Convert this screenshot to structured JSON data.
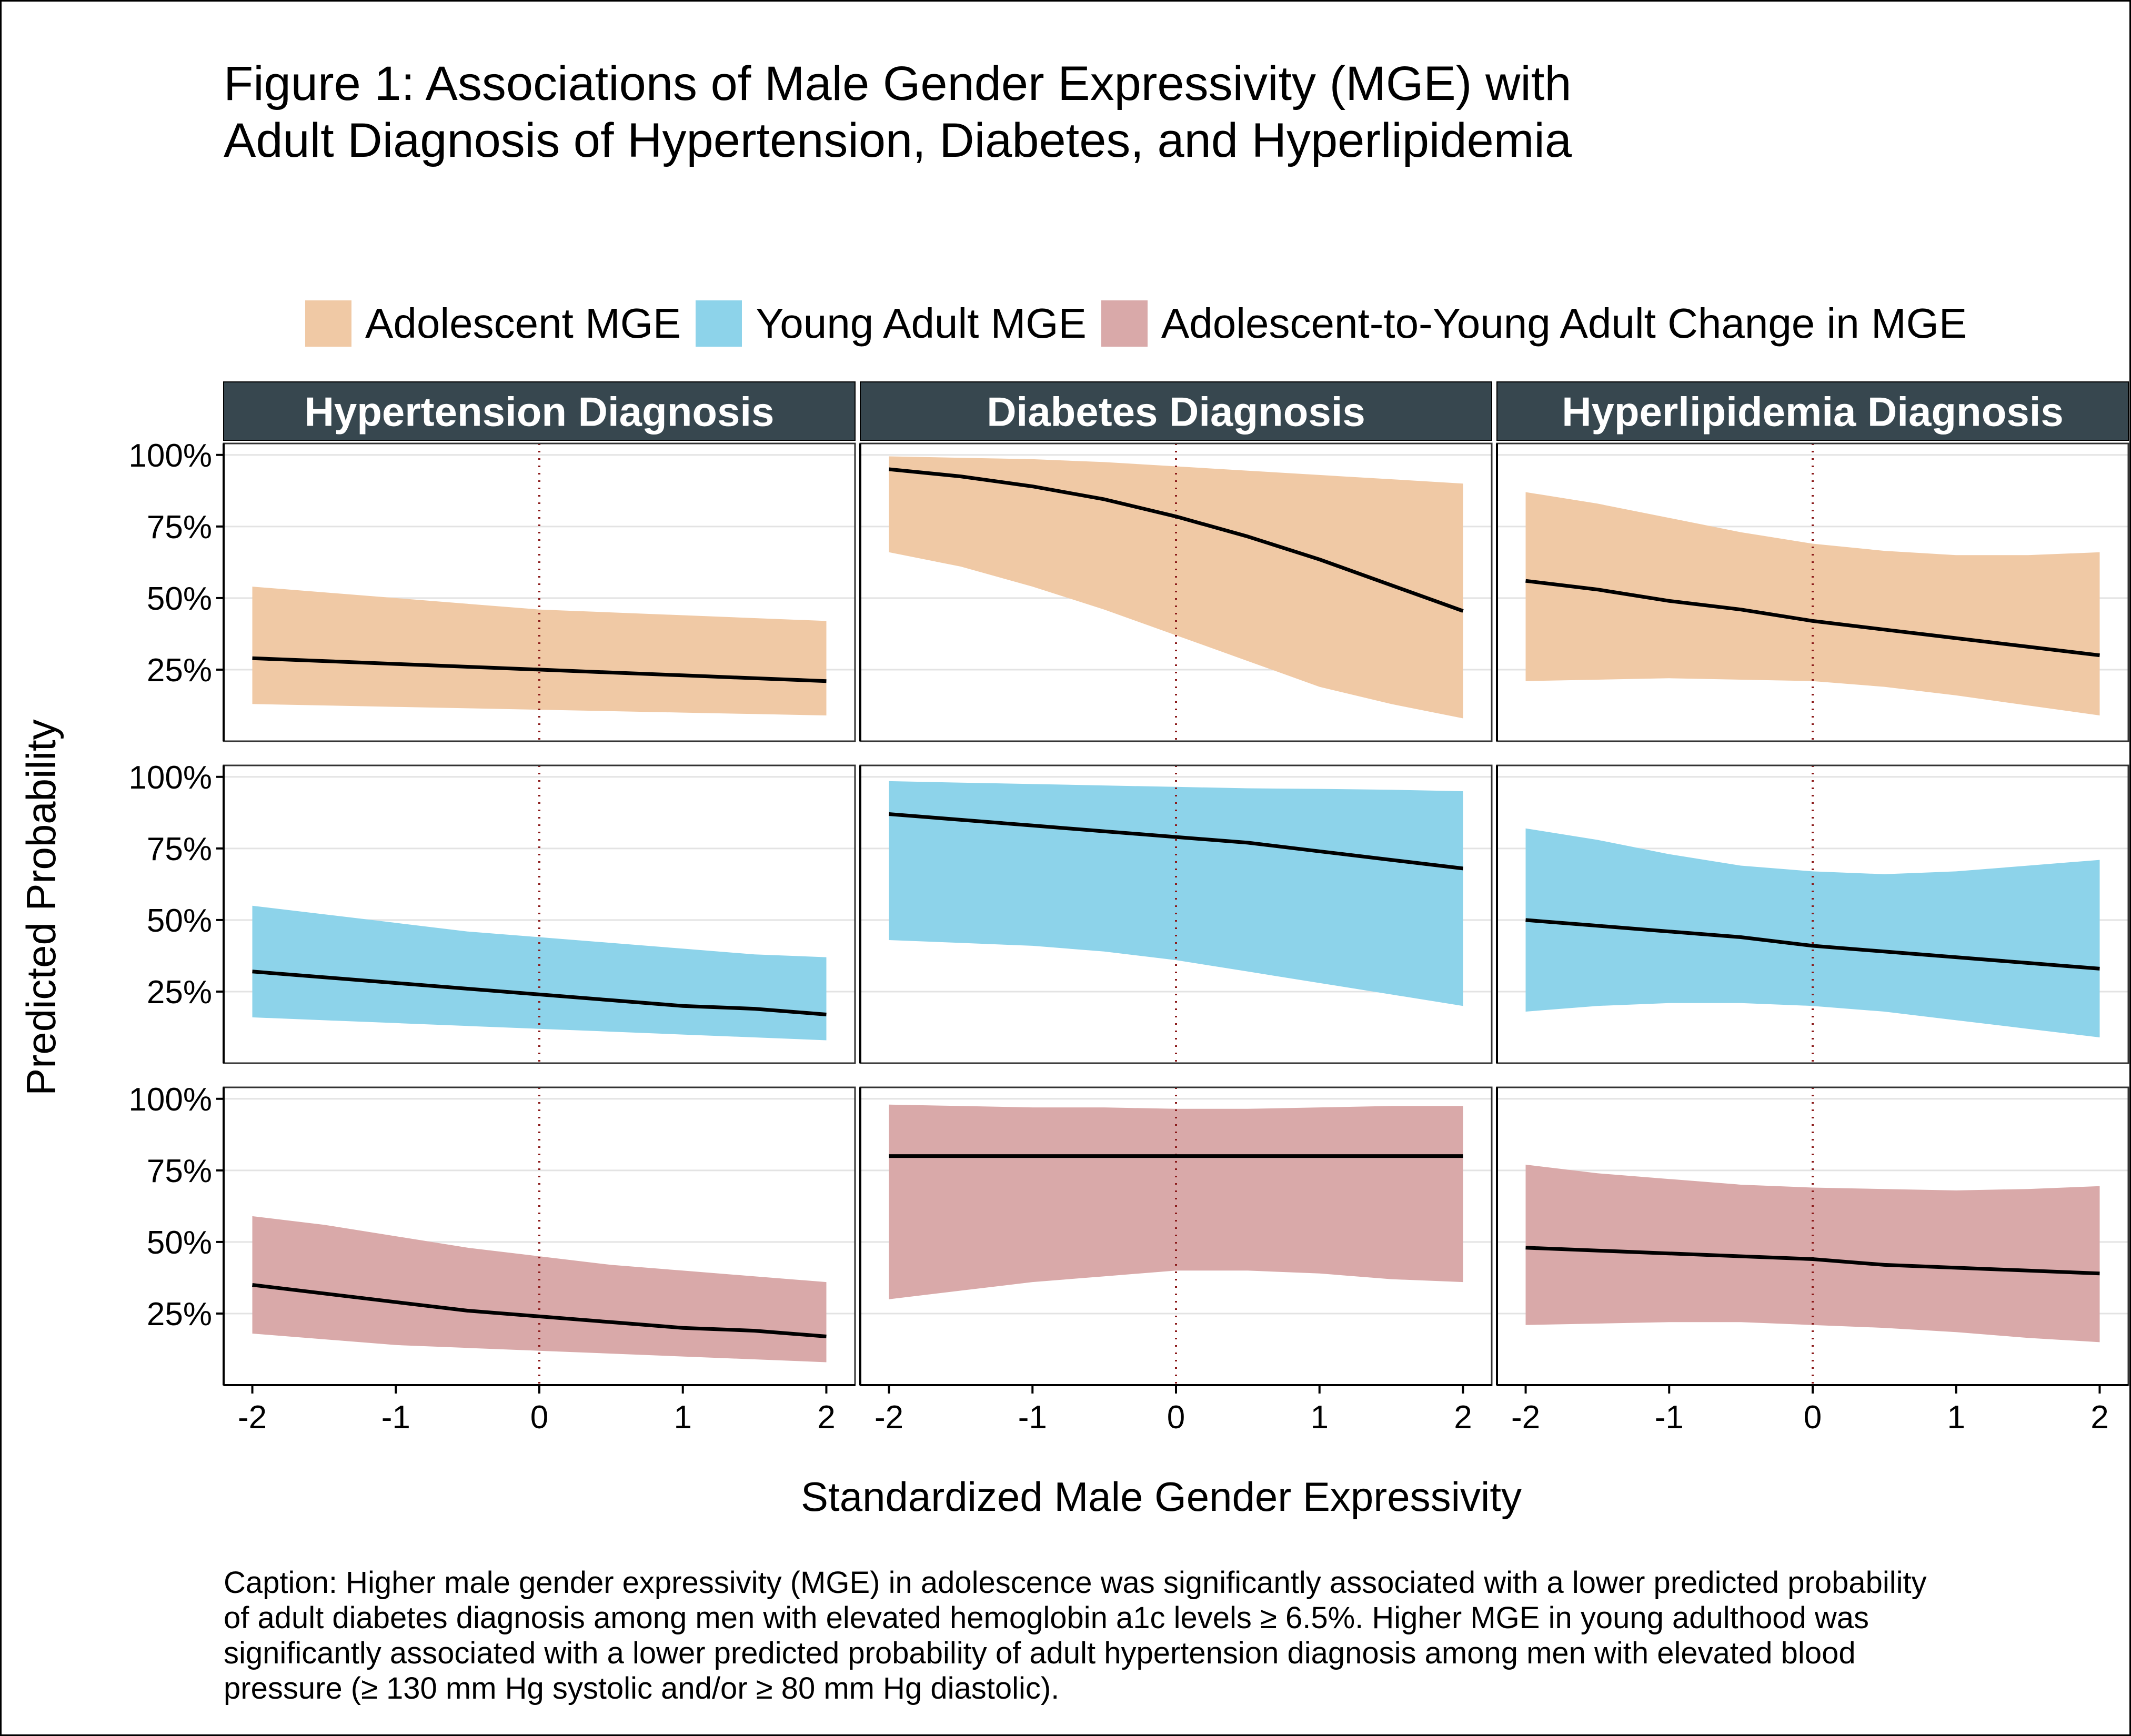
{
  "figure": {
    "title_line1": "Figure 1: Associations of Male Gender Expressivity (MGE) with",
    "title_line2": "Adult Diagnosis of Hypertension, Diabetes, and Hyperlipidemia",
    "caption_lines": [
      "Caption: Higher male gender expressivity (MGE) in adolescence was significantly associated with a lower predicted probability",
      "of adult diabetes diagnosis among men with elevated hemoglobin a1c levels ≥ 6.5%. Higher MGE in young adulthood was",
      "significantly associated with a lower predicted probability of adult hypertension diagnosis among men with elevated blood",
      "pressure (≥ 130 mm Hg systolic and/or ≥ 80 mm Hg diastolic)."
    ]
  },
  "chart_data": {
    "type": "area",
    "xlabel": "Standardized Male Gender Expressivity",
    "ylabel": "Predicted Probability",
    "xlim": [
      -2.2,
      2.2
    ],
    "ylim": [
      0,
      1.04
    ],
    "x_ticks": [
      -2,
      -1,
      0,
      1,
      2
    ],
    "x_tick_labels": [
      "-2",
      "-1",
      "0",
      "1",
      "2"
    ],
    "y_ticks": [
      1.0,
      0.75,
      0.5,
      0.25
    ],
    "y_tick_labels": [
      "100%",
      "75%",
      "50%",
      "25%"
    ],
    "reference_line_x": 0,
    "reference_line_color": "#8b1a1a",
    "grid": true,
    "legend_position": "top",
    "columns": [
      "Hypertension Diagnosis",
      "Diabetes Diagnosis",
      "Hyperlipidemia Diagnosis"
    ],
    "strip_color": "#37474f",
    "series": [
      {
        "name": "Adolescent MGE",
        "color": "#f0c9a5"
      },
      {
        "name": "Young Adult MGE",
        "color": "#8dd3ea"
      },
      {
        "name": "Adolescent-to-Young Adult Change in MGE",
        "color": "#d9a9a9"
      }
    ],
    "x": [
      -2,
      -1.5,
      -1,
      -0.5,
      0,
      0.5,
      1,
      1.5,
      2
    ],
    "panels": [
      [
        {
          "fit": [
            0.29,
            0.28,
            0.27,
            0.26,
            0.25,
            0.24,
            0.23,
            0.22,
            0.21
          ],
          "lower": [
            0.13,
            0.125,
            0.12,
            0.115,
            0.11,
            0.105,
            0.1,
            0.095,
            0.09
          ],
          "upper": [
            0.54,
            0.52,
            0.5,
            0.48,
            0.46,
            0.45,
            0.44,
            0.43,
            0.42
          ]
        },
        {
          "fit": [
            0.32,
            0.3,
            0.28,
            0.26,
            0.24,
            0.22,
            0.2,
            0.19,
            0.17
          ],
          "lower": [
            0.16,
            0.15,
            0.14,
            0.13,
            0.12,
            0.11,
            0.1,
            0.09,
            0.08
          ],
          "upper": [
            0.55,
            0.52,
            0.49,
            0.46,
            0.44,
            0.42,
            0.4,
            0.38,
            0.37
          ]
        },
        {
          "fit": [
            0.35,
            0.32,
            0.29,
            0.26,
            0.24,
            0.22,
            0.2,
            0.19,
            0.17
          ],
          "lower": [
            0.18,
            0.16,
            0.14,
            0.13,
            0.12,
            0.11,
            0.1,
            0.09,
            0.08
          ],
          "upper": [
            0.59,
            0.56,
            0.52,
            0.48,
            0.45,
            0.42,
            0.4,
            0.38,
            0.36
          ]
        }
      ],
      [
        {
          "fit": [
            0.95,
            0.925,
            0.89,
            0.845,
            0.785,
            0.715,
            0.635,
            0.545,
            0.455
          ],
          "lower": [
            0.66,
            0.61,
            0.54,
            0.46,
            0.37,
            0.28,
            0.19,
            0.13,
            0.08
          ],
          "upper": [
            0.995,
            0.99,
            0.985,
            0.975,
            0.96,
            0.945,
            0.93,
            0.915,
            0.9
          ]
        },
        {
          "fit": [
            0.87,
            0.85,
            0.83,
            0.81,
            0.79,
            0.77,
            0.74,
            0.71,
            0.68
          ],
          "lower": [
            0.43,
            0.42,
            0.41,
            0.39,
            0.36,
            0.32,
            0.28,
            0.24,
            0.2
          ],
          "upper": [
            0.985,
            0.98,
            0.975,
            0.97,
            0.965,
            0.96,
            0.958,
            0.955,
            0.95
          ]
        },
        {
          "fit": [
            0.8,
            0.8,
            0.8,
            0.8,
            0.8,
            0.8,
            0.8,
            0.8,
            0.8
          ],
          "lower": [
            0.3,
            0.33,
            0.36,
            0.38,
            0.4,
            0.4,
            0.39,
            0.37,
            0.36
          ],
          "upper": [
            0.98,
            0.975,
            0.97,
            0.97,
            0.965,
            0.965,
            0.97,
            0.975,
            0.975
          ]
        }
      ],
      [
        {
          "fit": [
            0.56,
            0.53,
            0.49,
            0.46,
            0.42,
            0.39,
            0.36,
            0.33,
            0.3
          ],
          "lower": [
            0.21,
            0.215,
            0.22,
            0.215,
            0.21,
            0.19,
            0.16,
            0.125,
            0.09
          ],
          "upper": [
            0.87,
            0.83,
            0.78,
            0.73,
            0.69,
            0.665,
            0.65,
            0.65,
            0.66
          ]
        },
        {
          "fit": [
            0.5,
            0.48,
            0.46,
            0.44,
            0.41,
            0.39,
            0.37,
            0.35,
            0.33
          ],
          "lower": [
            0.18,
            0.2,
            0.21,
            0.21,
            0.2,
            0.18,
            0.15,
            0.12,
            0.09
          ],
          "upper": [
            0.82,
            0.78,
            0.73,
            0.69,
            0.67,
            0.66,
            0.67,
            0.69,
            0.71
          ]
        },
        {
          "fit": [
            0.48,
            0.47,
            0.46,
            0.45,
            0.44,
            0.42,
            0.41,
            0.4,
            0.39
          ],
          "lower": [
            0.21,
            0.215,
            0.22,
            0.22,
            0.21,
            0.2,
            0.185,
            0.165,
            0.15
          ],
          "upper": [
            0.77,
            0.74,
            0.72,
            0.7,
            0.69,
            0.685,
            0.68,
            0.685,
            0.695
          ]
        }
      ]
    ]
  }
}
